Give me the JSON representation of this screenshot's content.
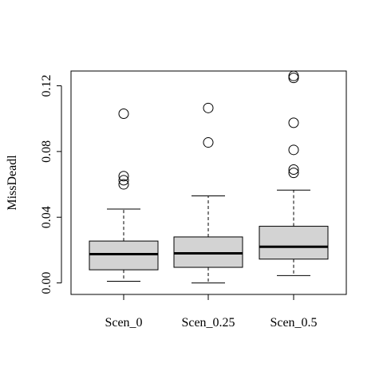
{
  "chart_data": {
    "type": "boxplot",
    "title": "",
    "xlabel": "",
    "ylabel": "MissDeadl",
    "ylim": [
      -0.007,
      0.129
    ],
    "yticks": [
      0.0,
      0.04,
      0.08,
      0.12
    ],
    "ytick_labels": [
      "0.00",
      "0.04",
      "0.08",
      "0.12"
    ],
    "grid": false,
    "box_fill": "#d3d3d3",
    "series": [
      {
        "name": "Scen_0",
        "whisker_low": 0.001,
        "q1": 0.008,
        "median": 0.0175,
        "q3": 0.0255,
        "whisker_high": 0.045,
        "outliers": [
          0.103,
          0.065,
          0.0625,
          0.06
        ]
      },
      {
        "name": "Scen_0.25",
        "whisker_low": 0.0,
        "q1": 0.0095,
        "median": 0.018,
        "q3": 0.028,
        "whisker_high": 0.053,
        "outliers": [
          0.1065,
          0.0855
        ]
      },
      {
        "name": "Scen_0.5",
        "whisker_low": 0.0045,
        "q1": 0.0145,
        "median": 0.022,
        "q3": 0.0345,
        "whisker_high": 0.0565,
        "outliers": [
          0.126,
          0.1248,
          0.0975,
          0.081,
          0.069,
          0.067
        ]
      }
    ]
  }
}
